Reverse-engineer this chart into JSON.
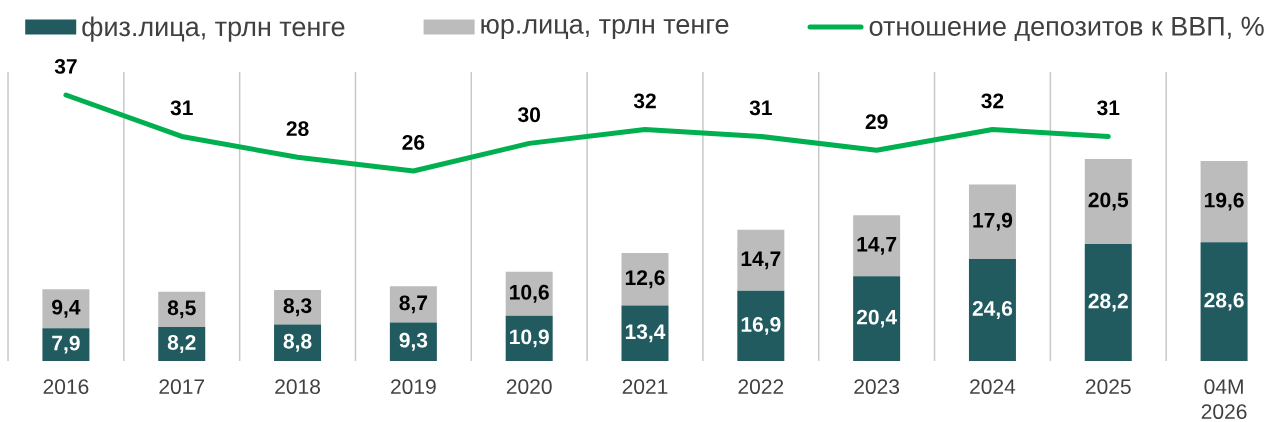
{
  "chart_data": {
    "type": "bar",
    "stacked": true,
    "categories": [
      "2016",
      "2017",
      "2018",
      "2019",
      "2020",
      "2021",
      "2022",
      "2023",
      "2024",
      "2025",
      "04M 2026"
    ],
    "series": [
      {
        "name": "физ.лица, трлн тенге",
        "color": "#215b5f",
        "values": [
          7.9,
          8.2,
          8.8,
          9.3,
          10.9,
          13.4,
          16.9,
          20.4,
          24.6,
          28.2,
          28.6
        ],
        "value_labels": [
          "7,9",
          "8,2",
          "8,8",
          "9,3",
          "10,9",
          "13,4",
          "16,9",
          "20,4",
          "24,6",
          "28,2",
          "28,6"
        ]
      },
      {
        "name": "юр.лица, трлн тенге",
        "color": "#bcbcbc",
        "values": [
          9.4,
          8.5,
          8.3,
          8.7,
          10.6,
          12.6,
          14.7,
          14.7,
          17.9,
          20.5,
          19.6
        ],
        "value_labels": [
          "9,4",
          "8,5",
          "8,3",
          "8,7",
          "10,6",
          "12,6",
          "14,7",
          "14,7",
          "17,9",
          "20,5",
          "19,6"
        ]
      },
      {
        "name": "отношение депозитов к ВВП, %",
        "type": "line",
        "axis": "y2",
        "color": "#00b050",
        "values": [
          37,
          31,
          28,
          26,
          30,
          32,
          31,
          29,
          32,
          31,
          null
        ],
        "value_labels": [
          "37",
          "31",
          "28",
          "26",
          "30",
          "32",
          "31",
          "29",
          "32",
          "31",
          null
        ]
      }
    ],
    "grid": "x",
    "legend": "top",
    "tick_labels": "x"
  }
}
